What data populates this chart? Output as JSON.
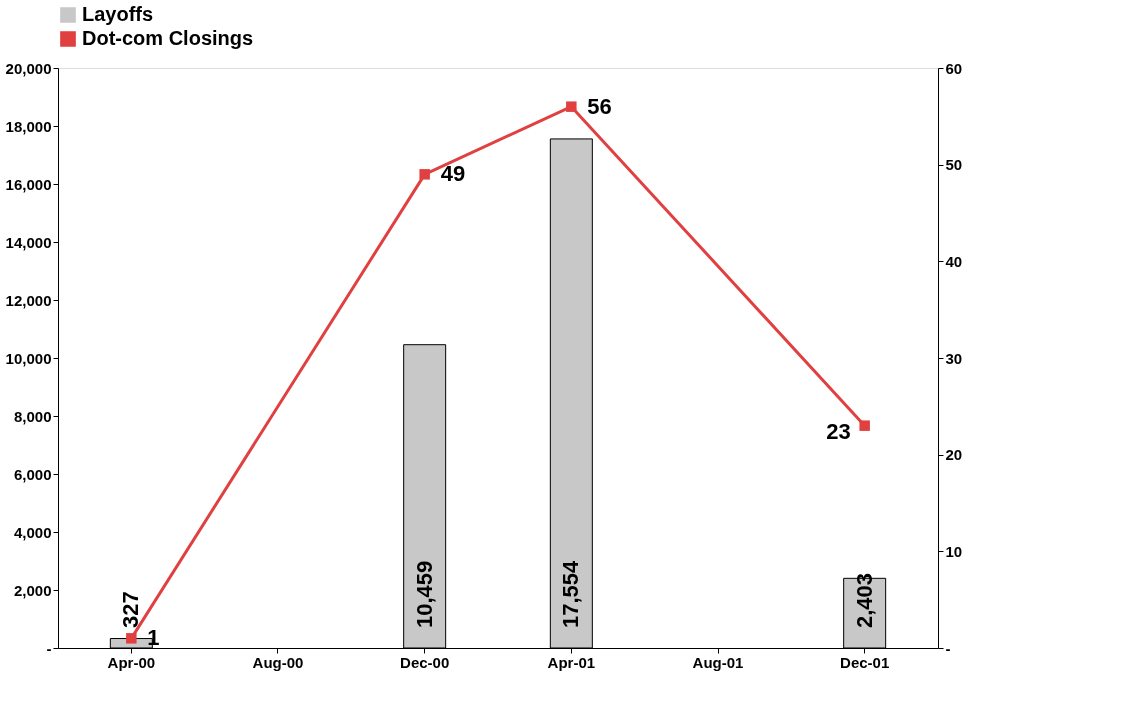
{
  "chart_data": {
    "type": "bar",
    "categories": [
      "Apr-00",
      "Aug-00",
      "Dec-00",
      "Apr-01",
      "Aug-01",
      "Dec-01"
    ],
    "series": [
      {
        "name": "Layoffs",
        "type": "bar",
        "color": "#c8c8c8",
        "values": [
          327,
          null,
          10459,
          17554,
          null,
          2403
        ],
        "value_labels": [
          "327",
          null,
          "10,459",
          "17,554",
          null,
          "2,403"
        ]
      },
      {
        "name": "Dot-com Closings",
        "type": "line",
        "axis": "y2",
        "color": "#e04040",
        "values": [
          1,
          null,
          49,
          56,
          null,
          23
        ],
        "value_labels": [
          "1",
          null,
          "49",
          "56",
          null,
          "23"
        ]
      }
    ],
    "ylim": [
      0,
      20000
    ],
    "yticks": [
      {
        "value": 0,
        "label": "-"
      },
      {
        "value": 2000,
        "label": "2,000"
      },
      {
        "value": 4000,
        "label": "4,000"
      },
      {
        "value": 6000,
        "label": "6,000"
      },
      {
        "value": 8000,
        "label": "8,000"
      },
      {
        "value": 10000,
        "label": "10,000"
      },
      {
        "value": 12000,
        "label": "12,000"
      },
      {
        "value": 14000,
        "label": "14,000"
      },
      {
        "value": 16000,
        "label": "16,000"
      },
      {
        "value": 18000,
        "label": "18,000"
      },
      {
        "value": 20000,
        "label": "20,000"
      }
    ],
    "y2lim": [
      0,
      60
    ],
    "y2ticks": [
      {
        "value": 0,
        "label": "-"
      },
      10,
      20,
      30,
      40,
      50,
      60
    ],
    "data_labels": true,
    "legend": "top",
    "grid": false,
    "marker": "square"
  }
}
